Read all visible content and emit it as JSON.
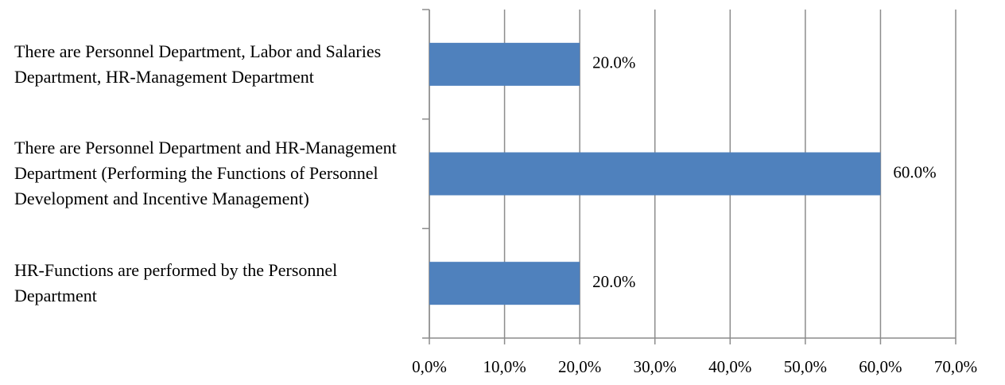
{
  "chart_data": {
    "type": "bar",
    "orientation": "horizontal",
    "categories": [
      "There are Personnel Department, Labor and Salaries Department, HR-Management Department",
      "There are Personnel Department and HR-Management Department (Performing the Functions of Personnel Development and Incentive Management)",
      "HR-Functions are performed by the Personnel Department"
    ],
    "values": [
      20,
      60,
      20
    ],
    "value_labels": [
      "20.0%",
      "60.0%",
      "20.0%"
    ],
    "color": "#4f81bd",
    "xlim": [
      0,
      70
    ],
    "xticks": [
      {
        "value": 0,
        "label": "0,0%"
      },
      {
        "value": 10,
        "label": "10,0%"
      },
      {
        "value": 20,
        "label": "20,0%"
      },
      {
        "value": 30,
        "label": "30,0%"
      },
      {
        "value": 40,
        "label": "40,0%"
      },
      {
        "value": 50,
        "label": "50,0%"
      },
      {
        "value": 60,
        "label": "60,0%"
      },
      {
        "value": 70,
        "label": "70,0%"
      }
    ],
    "grid": true
  }
}
